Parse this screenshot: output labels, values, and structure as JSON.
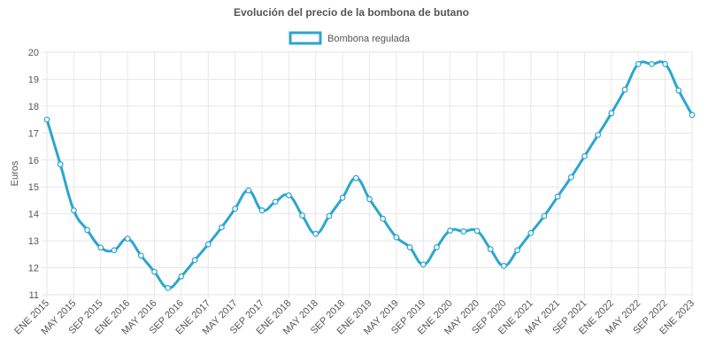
{
  "chart_data": {
    "type": "line",
    "title": "Evolución del precio de la bombona de butano",
    "ylabel": "Euros",
    "xlabel": "",
    "ylim": [
      11,
      20
    ],
    "yticks": [
      11,
      12,
      13,
      14,
      15,
      16,
      17,
      18,
      19,
      20
    ],
    "grid": true,
    "legend_position": "top-center",
    "colors": {
      "series": "#2aa6cf",
      "grid": "#e6e6e6",
      "text": "#555555"
    },
    "x": [
      "ENE 2015",
      "MAR 2015",
      "MAY 2015",
      "JUL 2015",
      "SEP 2015",
      "NOV 2015",
      "ENE 2016",
      "MAR 2016",
      "MAY 2016",
      "JUL 2016",
      "SEP 2016",
      "NOV 2016",
      "ENE 2017",
      "MAR 2017",
      "MAY 2017",
      "JUL 2017",
      "SEP 2017",
      "NOV 2017",
      "ENE 2018",
      "MAR 2018",
      "MAY 2018",
      "JUL 2018",
      "SEP 2018",
      "NOV 2018",
      "ENE 2019",
      "MAR 2019",
      "MAY 2019",
      "JUL 2019",
      "SEP 2019",
      "NOV 2019",
      "ENE 2020",
      "MAR 2020",
      "MAY 2020",
      "JUL 2020",
      "SEP 2020",
      "NOV 2020",
      "ENE 2021",
      "MAR 2021",
      "MAY 2021",
      "JUL 2021",
      "SEP 2021",
      "NOV 2021",
      "ENE 2022",
      "MAR 2022",
      "MAY 2022",
      "JUL 2022",
      "SEP 2022",
      "NOV 2022",
      "ENE 2023"
    ],
    "x_tick_labels": [
      "ENE 2015",
      "MAY 2015",
      "SEP 2015",
      "ENE 2016",
      "MAY 2016",
      "SEP 2016",
      "ENE 2017",
      "MAY 2017",
      "SEP 2017",
      "ENE 2018",
      "MAY 2018",
      "SEP 2018",
      "ENE 2019",
      "MAY 2019",
      "SEP 2019",
      "ENE 2020",
      "MAY 2020",
      "SEP 2020",
      "ENE 2021",
      "MAY 2021",
      "SEP 2021",
      "ENE 2022",
      "MAY 2022",
      "SEP 2022",
      "ENE 2023"
    ],
    "series": [
      {
        "name": "Bombona regulada",
        "values": [
          17.5,
          15.84,
          14.13,
          13.4,
          12.75,
          12.65,
          13.08,
          12.45,
          11.85,
          11.25,
          11.68,
          12.28,
          12.87,
          13.5,
          14.19,
          14.87,
          14.13,
          14.45,
          14.69,
          13.94,
          13.26,
          13.92,
          14.6,
          15.33,
          14.55,
          13.82,
          13.13,
          12.76,
          12.12,
          12.76,
          13.38,
          13.35,
          13.37,
          12.69,
          12.07,
          12.65,
          13.29,
          13.92,
          14.64,
          15.36,
          16.14,
          16.93,
          17.74,
          18.61,
          19.56,
          19.56,
          19.56,
          18.58,
          17.67
        ]
      }
    ]
  }
}
